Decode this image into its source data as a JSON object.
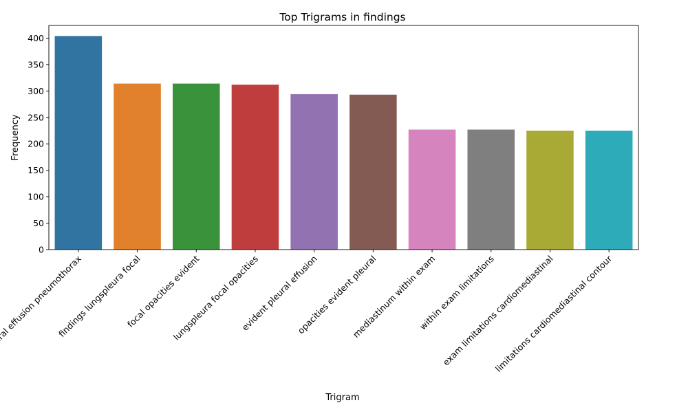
{
  "chart_data": {
    "type": "bar",
    "title": "Top Trigrams in findings",
    "xlabel": "Trigram",
    "ylabel": "Frequency",
    "categories": [
      "pleural effusion pneumothorax",
      "findings lungspleura focal",
      "focal opacities evident",
      "lungspleura focal opacities",
      "evident pleural effusion",
      "opacities evident pleural",
      "mediastinum within exam",
      "within exam limitations",
      "exam limitations cardiomediastinal",
      "limitations cardiomediastinal contour"
    ],
    "values": [
      404,
      314,
      314,
      312,
      294,
      293,
      227,
      227,
      225,
      225
    ],
    "colors": [
      "#3274a1",
      "#e1812c",
      "#3a923a",
      "#c03d3e",
      "#9372b2",
      "#845b53",
      "#d684bd",
      "#7f7f7f",
      "#a9aa35",
      "#2eabb8"
    ],
    "ylim": [
      0,
      424
    ],
    "yticks": [
      0,
      50,
      100,
      150,
      200,
      250,
      300,
      350,
      400
    ],
    "grid": false,
    "legend": "none"
  }
}
